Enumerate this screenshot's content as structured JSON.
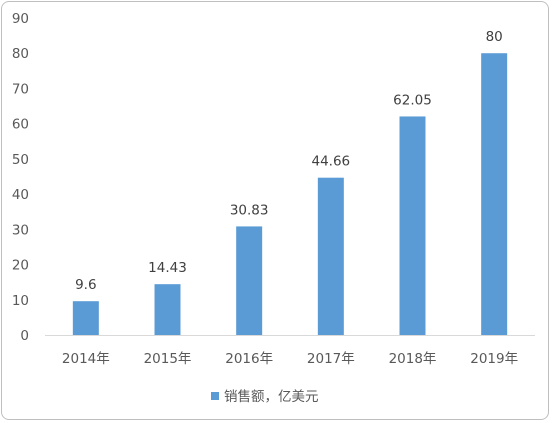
{
  "chart_data": {
    "type": "bar",
    "categories": [
      "2014年",
      "2015年",
      "2016年",
      "2017年",
      "2018年",
      "2019年"
    ],
    "series": [
      {
        "name": "销售额，亿美元",
        "values": [
          9.6,
          14.43,
          30.83,
          44.66,
          62.05,
          80
        ],
        "color": "#5b9bd5"
      }
    ],
    "data_labels": [
      "9.6",
      "14.43",
      "30.83",
      "44.66",
      "62.05",
      "80"
    ],
    "y_ticks": [
      "0",
      "10",
      "20",
      "30",
      "40",
      "50",
      "60",
      "70",
      "80",
      "90"
    ],
    "ylim": [
      0,
      90
    ],
    "grid": false,
    "legend_position": "bottom"
  }
}
